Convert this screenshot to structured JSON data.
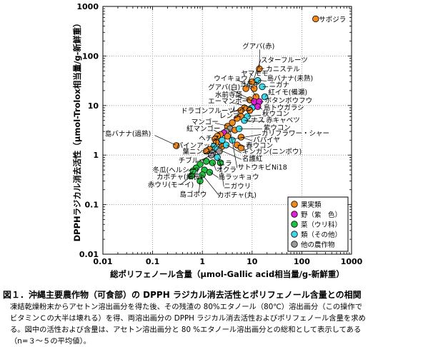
{
  "chart_data": {
    "type": "scatter",
    "xlabel": "総ポリフェノール含量（μmol-Gallic acid相当量/g-新鮮重）",
    "ylabel": "DPPHラジカル消去活性（μmol-Trolox相当量/g-新鮮重）",
    "xscale": "log",
    "yscale": "log",
    "xlim": [
      0.01,
      1000
    ],
    "ylim": [
      0.01,
      1000
    ],
    "x_ticks": [
      "0.01",
      "0.1",
      "1",
      "10",
      "100",
      "1000"
    ],
    "y_ticks": [
      "0.01",
      "0.1",
      "1",
      "10",
      "100",
      "1000"
    ],
    "grid": true,
    "legend_position": "bottom-right",
    "legend": [
      {
        "key": "fruit",
        "label": "果実類",
        "color": "#f08a1c"
      },
      {
        "key": "purple",
        "label": "野（紫　色）",
        "color": "#e020d8"
      },
      {
        "key": "green",
        "label": "菜（ウリ科）",
        "color": "#20c040"
      },
      {
        "key": "other",
        "label": "類（その他）",
        "color": "#40d8e8"
      },
      {
        "key": "crop",
        "label": "他の農作物",
        "color": "#9a9a9a"
      }
    ],
    "points": [
      {
        "x": 190,
        "y": 560,
        "g": "fruit"
      },
      {
        "x": 14,
        "y": 55,
        "g": "fruit"
      },
      {
        "x": 10,
        "y": 30,
        "g": "fruit"
      },
      {
        "x": 13,
        "y": 32,
        "g": "other"
      },
      {
        "x": 11,
        "y": 22,
        "g": "fruit"
      },
      {
        "x": 7.5,
        "y": 22,
        "g": "fruit"
      },
      {
        "x": 16,
        "y": 24,
        "g": "other"
      },
      {
        "x": 12,
        "y": 15,
        "g": "fruit"
      },
      {
        "x": 18,
        "y": 15,
        "g": "other"
      },
      {
        "x": 9,
        "y": 13,
        "g": "fruit"
      },
      {
        "x": 11,
        "y": 12,
        "g": "purple"
      },
      {
        "x": 14,
        "y": 12,
        "g": "purple"
      },
      {
        "x": 13,
        "y": 9.5,
        "g": "purple"
      },
      {
        "x": 10,
        "y": 9,
        "g": "other"
      },
      {
        "x": 7,
        "y": 9,
        "g": "fruit"
      },
      {
        "x": 9,
        "y": 8,
        "g": "fruit"
      },
      {
        "x": 6,
        "y": 8,
        "g": "fruit"
      },
      {
        "x": 8,
        "y": 6,
        "g": "other"
      },
      {
        "x": 6,
        "y": 6,
        "g": "fruit"
      },
      {
        "x": 5,
        "y": 5.5,
        "g": "fruit"
      },
      {
        "x": 7,
        "y": 5,
        "g": "other"
      },
      {
        "x": 4,
        "y": 4.5,
        "g": "fruit"
      },
      {
        "x": 3.2,
        "y": 3.8,
        "g": "fruit"
      },
      {
        "x": 3.6,
        "y": 3.4,
        "g": "crop"
      },
      {
        "x": 4.5,
        "y": 3.2,
        "g": "fruit"
      },
      {
        "x": 5.5,
        "y": 3.4,
        "g": "other"
      },
      {
        "x": 3,
        "y": 3,
        "g": "crop"
      },
      {
        "x": 2.7,
        "y": 2.8,
        "g": "purple"
      },
      {
        "x": 2.3,
        "y": 2.6,
        "g": "fruit"
      },
      {
        "x": 2,
        "y": 2.4,
        "g": "fruit"
      },
      {
        "x": 1.8,
        "y": 2.1,
        "g": "fruit"
      },
      {
        "x": 3.2,
        "y": 2.4,
        "g": "fruit"
      },
      {
        "x": 6,
        "y": 2.3,
        "g": "fruit"
      },
      {
        "x": 4,
        "y": 2,
        "g": "other"
      },
      {
        "x": 2.5,
        "y": 2,
        "g": "other"
      },
      {
        "x": 1.9,
        "y": 1.8,
        "g": "fruit"
      },
      {
        "x": 2.5,
        "y": 1.5,
        "g": "fruit"
      },
      {
        "x": 1.7,
        "y": 1.5,
        "g": "other"
      },
      {
        "x": 3,
        "y": 1.6,
        "g": "other"
      },
      {
        "x": 5,
        "y": 1.6,
        "g": "fruit"
      },
      {
        "x": 6,
        "y": 1.4,
        "g": "fruit"
      },
      {
        "x": 2,
        "y": 1.3,
        "g": "other"
      },
      {
        "x": 1.4,
        "y": 1.3,
        "g": "fruit"
      },
      {
        "x": 2.2,
        "y": 1.2,
        "g": "crop"
      },
      {
        "x": 1.6,
        "y": 1.1,
        "g": "crop"
      },
      {
        "x": 1.2,
        "y": 1.2,
        "g": "fruit"
      },
      {
        "x": 1.5,
        "y": 1,
        "g": "crop"
      },
      {
        "x": 2,
        "y": 0.9,
        "g": "other"
      },
      {
        "x": 0.3,
        "y": 1.55,
        "g": "fruit"
      },
      {
        "x": 2.3,
        "y": 0.7,
        "g": "green"
      },
      {
        "x": 1.2,
        "y": 0.75,
        "g": "green"
      },
      {
        "x": 1.6,
        "y": 0.7,
        "g": "green"
      },
      {
        "x": 0.9,
        "y": 0.65,
        "g": "green"
      },
      {
        "x": 0.75,
        "y": 0.55,
        "g": "green"
      },
      {
        "x": 1.1,
        "y": 0.5,
        "g": "green"
      },
      {
        "x": 0.65,
        "y": 0.48,
        "g": "green"
      },
      {
        "x": 0.6,
        "y": 0.38,
        "g": "green"
      },
      {
        "x": 1.4,
        "y": 0.45,
        "g": "green"
      },
      {
        "x": 1.0,
        "y": 0.4,
        "g": "green"
      },
      {
        "x": 0.9,
        "y": 0.3,
        "g": "green"
      }
    ],
    "labels": [
      {
        "text": "サポジラ",
        "x": 220,
        "y": 560,
        "anchor": "start"
      },
      {
        "text": "グアバ(赤)",
        "x": 6.4,
        "y": 160,
        "anchor": "start"
      },
      {
        "text": "スターフルーツ",
        "x": 15,
        "y": 85,
        "anchor": "start"
      },
      {
        "text": "カニステル",
        "x": 19,
        "y": 56,
        "anchor": "start"
      },
      {
        "text": "ヤマモモ",
        "x": 6,
        "y": 46,
        "anchor": "start"
      },
      {
        "text": "島バナナ(未熟)",
        "x": 20,
        "y": 36,
        "anchor": "start"
      },
      {
        "text": "ウイキョウ",
        "x": 1.7,
        "y": 36,
        "anchor": "start"
      },
      {
        "text": "ヨモギ",
        "x": 5.6,
        "y": 28,
        "anchor": "start"
      },
      {
        "text": "ニガナ",
        "x": 22,
        "y": 27,
        "anchor": "start"
      },
      {
        "text": "グアバ(白)",
        "x": 1.3,
        "y": 24,
        "anchor": "start"
      },
      {
        "text": "紅イモ(備瀬)",
        "x": 21,
        "y": 19,
        "anchor": "start"
      },
      {
        "text": "水前寺菜",
        "x": 1.8,
        "y": 17,
        "anchor": "start"
      },
      {
        "text": "ボタンボウフウ",
        "x": 18,
        "y": 13,
        "anchor": "start"
      },
      {
        "text": "エーマンボー",
        "x": 1.3,
        "y": 12.5,
        "anchor": "start"
      },
      {
        "text": "島トウガラシ",
        "x": 17,
        "y": 9.3,
        "anchor": "start"
      },
      {
        "text": "レイシ",
        "x": 4,
        "y": 8.6,
        "anchor": "start"
      },
      {
        "text": "ドラゴンフルーツ",
        "x": 0.37,
        "y": 8,
        "anchor": "start"
      },
      {
        "text": "秋ウコン",
        "x": 16,
        "y": 7,
        "anchor": "start"
      },
      {
        "text": "レンブ",
        "x": 2.2,
        "y": 6.4,
        "anchor": "start"
      },
      {
        "text": "ナス",
        "x": 9.5,
        "y": 5.2,
        "anchor": "start"
      },
      {
        "text": "赤キャベツ",
        "x": 19,
        "y": 5.2,
        "anchor": "start"
      },
      {
        "text": "マンゴー",
        "x": 0.6,
        "y": 4.8,
        "anchor": "start"
      },
      {
        "text": "紫ウコン",
        "x": 17,
        "y": 3.7,
        "anchor": "start"
      },
      {
        "text": "紅マンゴー",
        "x": 0.48,
        "y": 3.5,
        "anchor": "start"
      },
      {
        "text": "カリフラワー・シャー",
        "x": 15.5,
        "y": 2.8,
        "anchor": "start"
      },
      {
        "text": "島バナナ(過熟)",
        "x": 0.011,
        "y": 2.75,
        "anchor": "start"
      },
      {
        "text": "ヘチマ",
        "x": 0.85,
        "y": 2.25,
        "anchor": "start"
      },
      {
        "text": "パパイヤ",
        "x": 10.5,
        "y": 2.1,
        "anchor": "start"
      },
      {
        "text": "パインアップル",
        "x": 0.3,
        "y": 1.6,
        "anchor": "start"
      },
      {
        "text": "春ウコン",
        "x": 7.5,
        "y": 1.6,
        "anchor": "start"
      },
      {
        "text": "葉ニンジン",
        "x": 0.4,
        "y": 1.2,
        "anchor": "start"
      },
      {
        "text": "ギンガン(ニンポウ)",
        "x": 6.3,
        "y": 1.2,
        "anchor": "start"
      },
      {
        "text": "名護紅",
        "x": 6.3,
        "y": 0.87,
        "anchor": "start"
      },
      {
        "text": "チブルー",
        "x": 0.33,
        "y": 0.8,
        "anchor": "start"
      },
      {
        "text": "ニラ",
        "x": 2.1,
        "y": 0.7,
        "anchor": "start"
      },
      {
        "text": "冬瓜(ヘルシー)",
        "x": 0.1,
        "y": 0.51,
        "anchor": "start"
      },
      {
        "text": "オクラ",
        "x": 1.9,
        "y": 0.52,
        "anchor": "start"
      },
      {
        "text": "サトウキビNi18",
        "x": 5.1,
        "y": 0.58,
        "anchor": "start"
      },
      {
        "text": "カボチャ(細長)",
        "x": 0.12,
        "y": 0.37,
        "anchor": "start"
      },
      {
        "text": "島ラッキョウ",
        "x": 2.1,
        "y": 0.37,
        "anchor": "start"
      },
      {
        "text": "赤ウリ(モーイ)",
        "x": 0.08,
        "y": 0.26,
        "anchor": "start"
      },
      {
        "text": "ニガウリ",
        "x": 2.7,
        "y": 0.24,
        "anchor": "start"
      },
      {
        "text": "島ゴボウ",
        "x": 0.35,
        "y": 0.165,
        "anchor": "start"
      },
      {
        "text": "カボチャ(丸)",
        "x": 2,
        "y": 0.16,
        "anchor": "start"
      }
    ],
    "leaders": [
      {
        "x1": 14.2,
        "y1": 135,
        "x2": 14,
        "y2": 57
      },
      {
        "x1": 17.5,
        "y1": 56,
        "x2": 14.5,
        "y2": 55
      },
      {
        "x1": 15,
        "y1": 85,
        "x2": 10.5,
        "y2": 31
      },
      {
        "x1": 9.5,
        "y1": 42,
        "x2": 7.7,
        "y2": 23
      },
      {
        "x1": 19.5,
        "y1": 31,
        "x2": 13.5,
        "y2": 32.5
      },
      {
        "x1": 5,
        "y1": 33,
        "x2": 11,
        "y2": 22.5
      },
      {
        "x1": 8.5,
        "y1": 25,
        "x2": 12,
        "y2": 15.5
      },
      {
        "x1": 21,
        "y1": 24,
        "x2": 16.5,
        "y2": 24
      },
      {
        "x1": 3.8,
        "y1": 21,
        "x2": 9,
        "y2": 13.5
      },
      {
        "x1": 20,
        "y1": 17,
        "x2": 18.5,
        "y2": 15.2
      },
      {
        "x1": 4.6,
        "y1": 15.5,
        "x2": 11,
        "y2": 12.2
      },
      {
        "x1": 17,
        "y1": 11.8,
        "x2": 14.5,
        "y2": 12
      },
      {
        "x1": 3.8,
        "y1": 11.5,
        "x2": 10,
        "y2": 9.2
      },
      {
        "x1": 16,
        "y1": 8.4,
        "x2": 13.5,
        "y2": 9.5
      },
      {
        "x1": 7.6,
        "y1": 8,
        "x2": 9,
        "y2": 8.1
      },
      {
        "x1": 3.6,
        "y1": 7.4,
        "x2": 6,
        "y2": 8
      },
      {
        "x1": 15,
        "y1": 6.4,
        "x2": 8.2,
        "y2": 6.1
      },
      {
        "x1": 4.3,
        "y1": 5.8,
        "x2": 6,
        "y2": 6
      },
      {
        "x1": 9.5,
        "y1": 4.7,
        "x2": 7,
        "y2": 5
      },
      {
        "x1": 18,
        "y1": 4.7,
        "x2": 7.2,
        "y2": 5
      },
      {
        "x1": 1.8,
        "y1": 4.4,
        "x2": 3.2,
        "y2": 3.9
      },
      {
        "x1": 16,
        "y1": 3.4,
        "x2": 5.6,
        "y2": 3.4
      },
      {
        "x1": 1.7,
        "y1": 3.2,
        "x2": 2.3,
        "y2": 2.7
      },
      {
        "x1": 15,
        "y1": 2.6,
        "x2": 4.1,
        "y2": 2.1
      },
      {
        "x1": 0.11,
        "y1": 2.5,
        "x2": 0.29,
        "y2": 1.6
      },
      {
        "x1": 1.6,
        "y1": 2.1,
        "x2": 1.9,
        "y2": 1.9
      },
      {
        "x1": 10,
        "y1": 1.95,
        "x2": 6.1,
        "y2": 2.3
      },
      {
        "x1": 1.4,
        "y1": 1.5,
        "x2": 1.7,
        "y2": 1.5
      },
      {
        "x1": 7.2,
        "y1": 1.5,
        "x2": 5.1,
        "y2": 1.6
      },
      {
        "x1": 1.05,
        "y1": 1.1,
        "x2": 1.6,
        "y2": 1.1
      },
      {
        "x1": 6.1,
        "y1": 1.1,
        "x2": 3.1,
        "y2": 1.6
      },
      {
        "x1": 6.1,
        "y1": 0.82,
        "x2": 2.3,
        "y2": 1.25
      },
      {
        "x1": 0.86,
        "y1": 0.75,
        "x2": 1.5,
        "y2": 1
      },
      {
        "x1": 2.3,
        "y1": 0.65,
        "x2": 2.1,
        "y2": 0.88
      },
      {
        "x1": 0.52,
        "y1": 0.48,
        "x2": 0.75,
        "y2": 0.55
      },
      {
        "x1": 1.9,
        "y1": 0.49,
        "x2": 1.65,
        "y2": 0.7
      },
      {
        "x1": 5,
        "y1": 0.55,
        "x2": 3.6,
        "y2": 3.3
      },
      {
        "x1": 0.5,
        "y1": 0.35,
        "x2": 0.66,
        "y2": 0.48
      },
      {
        "x1": 2.1,
        "y1": 0.35,
        "x2": 1.4,
        "y2": 0.46
      },
      {
        "x1": 0.36,
        "y1": 0.25,
        "x2": 0.6,
        "y2": 0.38
      },
      {
        "x1": 2.7,
        "y1": 0.23,
        "x2": 2.3,
        "y2": 0.7
      },
      {
        "x1": 0.85,
        "y1": 0.17,
        "x2": 0.9,
        "y2": 0.3
      },
      {
        "x1": 2.2,
        "y1": 0.15,
        "x2": 1.0,
        "y2": 0.4
      }
    ]
  },
  "caption": {
    "title": "図１．沖縄主要農作物（可食部）の DPPH ラジカル消去活性とポリフェノール含量との相関",
    "lines": [
      "凍結乾燥粉末からアセトン溶出画分を得た後、その残渣の 80%エタノール（80℃）溶出画分（この操作で",
      "ビタミンＣの大半は壊れる）を得、両溶出画分の DPPH ラジカル消去活性およびポリフェノール含量を求め",
      "る。図中の活性および含量は、アセトン溶出画分と 80 %エタノール溶出画分との総和として表示してある",
      "（n=３～５の平均値）。"
    ]
  }
}
